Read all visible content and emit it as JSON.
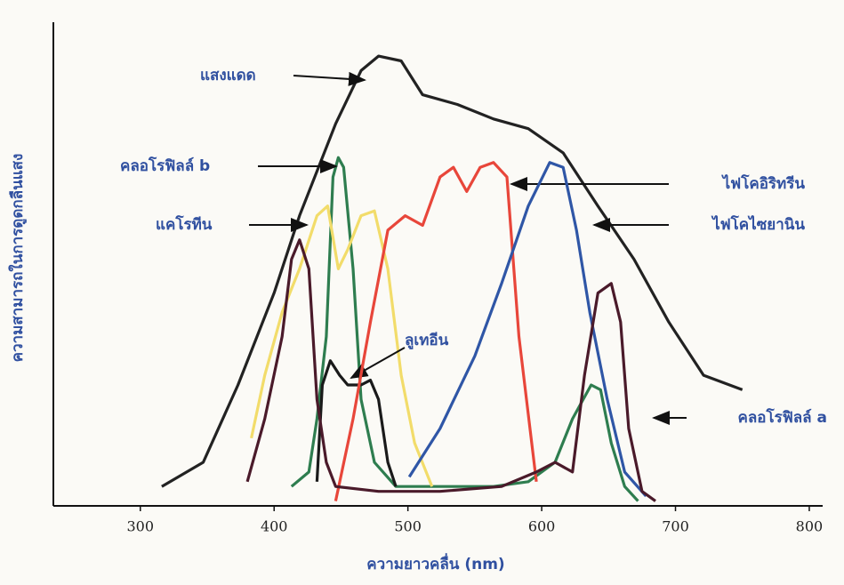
{
  "chart_data": {
    "type": "line",
    "x_label": "ความยาวคลื่น (nm)",
    "y_label": "ความสามารถในการดูดกลืนแสง",
    "xlim": [
      235,
      810
    ],
    "xticks": [
      300,
      400,
      500,
      600,
      700,
      800
    ],
    "ylim": [
      0,
      100
    ],
    "series": [
      {
        "name": "แสงแดด",
        "color": "#222222",
        "x": [
          316,
          347,
          373,
          400,
          419,
          446,
          465,
          478,
          495,
          511,
          537,
          564,
          590,
          616,
          642,
          669,
          695,
          721,
          750
        ],
        "values": [
          4,
          9,
          25,
          44,
          60,
          79,
          90,
          93,
          92,
          85,
          83,
          80,
          78,
          73,
          62,
          51,
          38,
          27,
          24
        ]
      },
      {
        "name": "คลอโรฟิลล์ b",
        "color": "#2e7d4f",
        "x": [
          413,
          426,
          432,
          439,
          444,
          448,
          452,
          459,
          465,
          475,
          491,
          524,
          564,
          590,
          610,
          623,
          637,
          644,
          652,
          662,
          672
        ],
        "values": [
          4,
          7,
          18,
          35,
          68,
          72,
          70,
          49,
          22,
          9,
          4,
          4,
          4,
          5,
          9,
          18,
          25,
          24,
          13,
          4,
          1
        ]
      },
      {
        "name": "แคโรทีน",
        "color": "#f2dc6a",
        "x": [
          383,
          393,
          406,
          419,
          432,
          440,
          448,
          455,
          465,
          475,
          485,
          495,
          505,
          518
        ],
        "values": [
          14,
          27,
          40,
          49,
          60,
          62,
          49,
          53,
          60,
          61,
          49,
          27,
          13,
          4
        ]
      },
      {
        "name": "ลูเทอีน",
        "color": "#1a1a1a",
        "x": [
          432,
          436,
          442,
          449,
          455,
          465,
          472,
          478,
          485,
          491
        ],
        "values": [
          5,
          25,
          30,
          27,
          25,
          25,
          26,
          22,
          9,
          4
        ]
      },
      {
        "name": "ไฟโคอิริทรีน",
        "color": "#e8463a",
        "x": [
          446,
          459,
          472,
          485,
          498,
          511,
          524,
          534,
          544,
          554,
          564,
          574,
          583,
          596
        ],
        "values": [
          1,
          18,
          38,
          57,
          60,
          58,
          68,
          70,
          65,
          70,
          71,
          68,
          35,
          5
        ]
      },
      {
        "name": "ไฟโคไซยานิน",
        "color": "#2f56a6",
        "x": [
          501,
          524,
          550,
          570,
          590,
          606,
          616,
          626,
          636,
          649,
          662,
          678
        ],
        "values": [
          6,
          16,
          31,
          46,
          62,
          71,
          70,
          57,
          40,
          22,
          7,
          2
        ]
      },
      {
        "name": "คลอโรฟิลล์ a",
        "color": "#4a1a2a",
        "x": [
          380,
          393,
          406,
          413,
          419,
          426,
          432,
          439,
          446,
          478,
          524,
          570,
          596,
          610,
          623,
          632,
          642,
          652,
          659,
          665,
          675,
          685
        ],
        "values": [
          5,
          18,
          35,
          51,
          55,
          49,
          22,
          9,
          4,
          3,
          3,
          4,
          7,
          9,
          7,
          27,
          44,
          46,
          38,
          16,
          3,
          1
        ]
      }
    ]
  }
}
